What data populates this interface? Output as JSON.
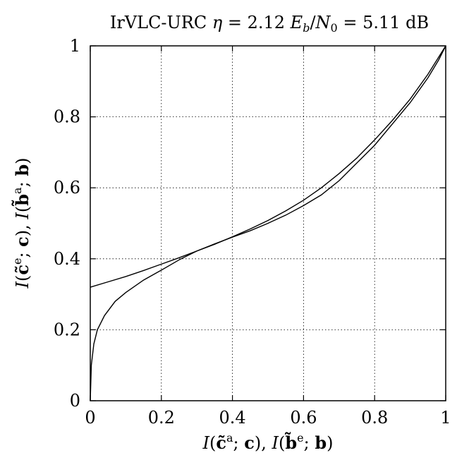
{
  "chart_data": {
    "type": "line",
    "title": "IrVLC-URC η = 2.12 E_b/N_0 = 5.11 dB",
    "xlabel": "I(c̃^a; c), I(b̃^e; b)",
    "ylabel": "I(c̃^e; c), I(b̃^a; b)",
    "xlim": [
      0,
      1
    ],
    "ylim": [
      0,
      1
    ],
    "xticks": [
      0,
      0.2,
      0.4,
      0.6,
      0.8,
      1
    ],
    "yticks": [
      0,
      0.2,
      0.4,
      0.6,
      0.8,
      1
    ],
    "xtick_labels": [
      "0",
      "0.2",
      "0.4",
      "0.6",
      "0.8",
      "1"
    ],
    "ytick_labels": [
      "0",
      "0.2",
      "0.4",
      "0.6",
      "0.8",
      "1"
    ],
    "grid": true,
    "series": [
      {
        "x": [
          0,
          0.05,
          0.1,
          0.15,
          0.2,
          0.25,
          0.3,
          0.35,
          0.4,
          0.45,
          0.5,
          0.55,
          0.6,
          0.65,
          0.7,
          0.75,
          0.8,
          0.85,
          0.9,
          0.95,
          1.0
        ],
        "y": [
          0.32,
          0.335,
          0.35,
          0.367,
          0.385,
          0.403,
          0.422,
          0.441,
          0.462,
          0.484,
          0.508,
          0.535,
          0.565,
          0.6,
          0.64,
          0.684,
          0.735,
          0.79,
          0.85,
          0.92,
          1.0
        ]
      },
      {
        "x": [
          0,
          0.003,
          0.01,
          0.02,
          0.04,
          0.07,
          0.1,
          0.15,
          0.2,
          0.25,
          0.3,
          0.35,
          0.4,
          0.45,
          0.5,
          0.55,
          0.6,
          0.65,
          0.7,
          0.75,
          0.8,
          0.85,
          0.9,
          0.95,
          0.98,
          1.0
        ],
        "y": [
          0,
          0.1,
          0.16,
          0.2,
          0.24,
          0.28,
          0.305,
          0.34,
          0.368,
          0.397,
          0.422,
          0.442,
          0.461,
          0.479,
          0.5,
          0.523,
          0.55,
          0.58,
          0.62,
          0.67,
          0.72,
          0.78,
          0.84,
          0.91,
          0.96,
          1.0
        ]
      }
    ]
  }
}
